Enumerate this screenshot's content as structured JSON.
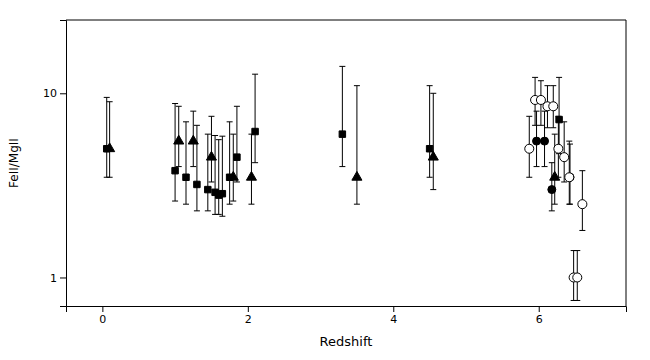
{
  "chart_data": {
    "type": "scatter",
    "xlabel": "Redshift",
    "ylabel": "FeII/MgII",
    "log": "y",
    "grid": false,
    "xlim": [
      -0.5,
      7.2
    ],
    "ylim": [
      0.7,
      25
    ],
    "xticks": [
      0,
      2,
      4,
      6
    ],
    "yticks": [
      1,
      10
    ],
    "series": [
      {
        "marker": "square",
        "color": "#000000",
        "x": [
          0.06,
          1.0,
          1.15,
          1.3,
          1.45,
          1.55,
          1.6,
          1.65,
          1.75,
          1.85,
          2.1,
          3.3,
          4.5,
          6.28
        ],
        "values": [
          5.0,
          3.8,
          3.5,
          3.2,
          3.0,
          2.9,
          2.8,
          2.85,
          3.5,
          4.5,
          6.2,
          6.0,
          5.0,
          7.2
        ],
        "yerr_lo": [
          1.5,
          1.2,
          1.0,
          0.9,
          0.7,
          0.7,
          0.6,
          0.7,
          1.0,
          1.2,
          2.0,
          2.0,
          1.5,
          2.5
        ],
        "yerr_hi": [
          4.5,
          5.0,
          3.5,
          3.5,
          3.0,
          3.0,
          2.8,
          3.0,
          3.5,
          4.0,
          6.5,
          8.0,
          6.0,
          5.0
        ]
      },
      {
        "marker": "triangle",
        "color": "#000000",
        "x": [
          0.1,
          1.05,
          1.25,
          1.5,
          1.8,
          2.05,
          3.5,
          4.55,
          6.22
        ],
        "values": [
          5.0,
          5.5,
          5.5,
          4.5,
          3.5,
          3.5,
          3.5,
          4.5,
          3.5
        ],
        "yerr_lo": [
          1.5,
          1.5,
          1.5,
          1.2,
          0.9,
          1.0,
          1.0,
          1.5,
          1.0
        ],
        "yerr_hi": [
          4.0,
          3.0,
          2.5,
          3.0,
          2.5,
          2.5,
          7.5,
          5.5,
          2.5
        ]
      },
      {
        "marker": "circle",
        "color": "#000000",
        "x": [
          5.97,
          6.08,
          6.18,
          6.43
        ],
        "values": [
          5.5,
          5.5,
          3.0,
          3.5
        ],
        "yerr_lo": [
          1.5,
          1.5,
          0.7,
          1.0
        ],
        "yerr_hi": [
          2.5,
          2.5,
          1.2,
          1.8
        ]
      },
      {
        "marker": "open-circle",
        "color": "#000000",
        "x": [
          5.87,
          5.95,
          6.03,
          6.12,
          6.2,
          6.27,
          6.35,
          6.42,
          6.48,
          6.53,
          6.6
        ],
        "values": [
          5.0,
          9.2,
          9.2,
          8.5,
          8.5,
          5.0,
          4.5,
          3.5,
          1.0,
          1.0,
          2.5
        ],
        "yerr_lo": [
          1.5,
          2.5,
          2.5,
          2.0,
          2.0,
          1.5,
          1.2,
          1.0,
          0.25,
          0.25,
          0.7
        ],
        "yerr_hi": [
          2.5,
          3.0,
          2.5,
          2.5,
          2.5,
          2.5,
          2.5,
          2.0,
          0.4,
          0.4,
          1.3
        ]
      }
    ]
  }
}
